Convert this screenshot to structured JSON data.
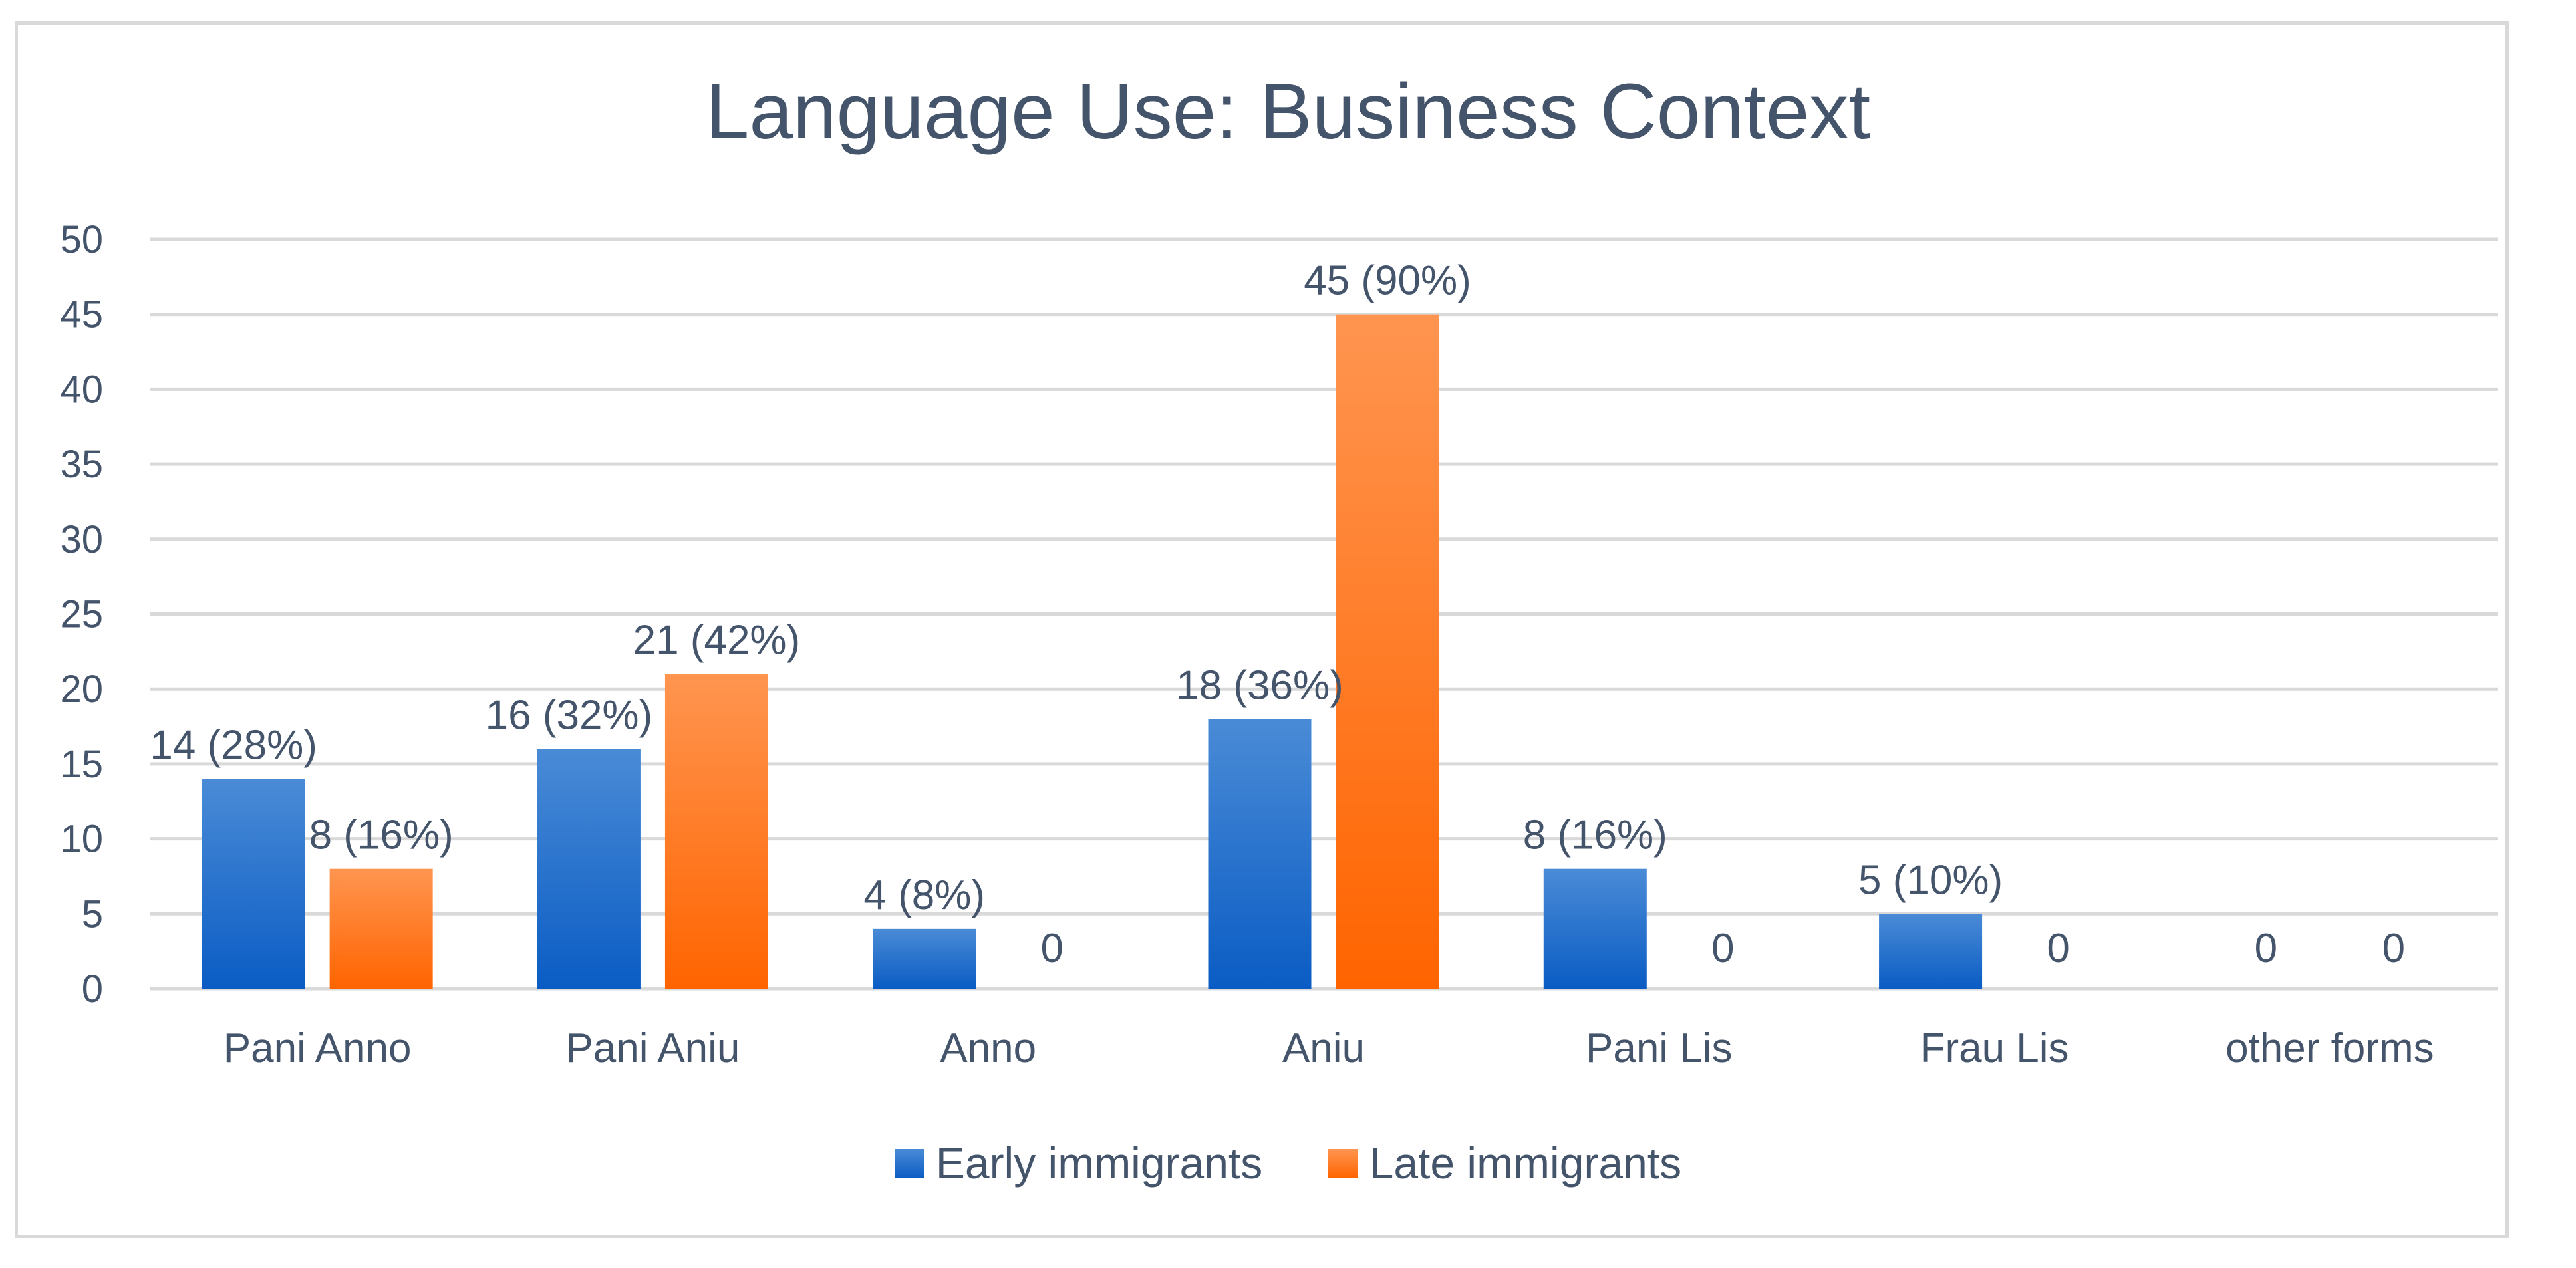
{
  "chart_data": {
    "type": "bar",
    "title": "Language Use: Business Context",
    "categories": [
      "Pani Anno",
      "Pani Aniu",
      "Anno",
      "Aniu",
      "Pani Lis",
      "Frau Lis",
      "other forms"
    ],
    "series": [
      {
        "name": "Early immigrants",
        "color": "#1565c8",
        "values": [
          14,
          16,
          4,
          18,
          8,
          5,
          0
        ],
        "labels": [
          "14 (28%)",
          "16 (32%)",
          "4 (8%)",
          "18 (36%)",
          "8 (16%)",
          "5 (10%)",
          "0"
        ]
      },
      {
        "name": "Late immigrants",
        "color": "#ff6a00",
        "values": [
          8,
          21,
          0,
          45,
          0,
          0,
          0
        ],
        "labels": [
          "8 (16%)",
          "21 (42%)",
          "0",
          "45 (90%)",
          "0",
          "0",
          "0"
        ]
      }
    ],
    "yticks": [
      "0",
      "5",
      "10",
      "15",
      "20",
      "25",
      "30",
      "35",
      "40",
      "45",
      "50"
    ],
    "ylim": [
      0,
      50
    ],
    "xlabel": "",
    "ylabel": "",
    "grid": true,
    "legend_position": "bottom"
  }
}
